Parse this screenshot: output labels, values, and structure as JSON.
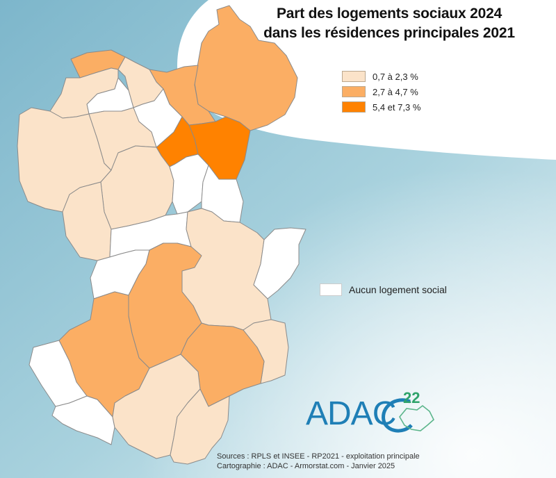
{
  "title": {
    "line1": "Part des logements sociaux 2024",
    "line2": "dans les résidences principales 2021"
  },
  "legend": {
    "classes": [
      {
        "label": "0,7 à 2,3 %",
        "color": "#fbe3c9"
      },
      {
        "label": "2,7 à 4,7 %",
        "color": "#fbae64"
      },
      {
        "label": "5,4 et 7,3 %",
        "color": "#ff8200"
      }
    ],
    "no_data": {
      "label": "Aucun logement social",
      "color": "#ffffff"
    }
  },
  "logo": {
    "text": "ADAC",
    "superscript": "22"
  },
  "sources": {
    "line1": "Sources : RPLS et INSEE - RP2021 - exploitation principale",
    "line2": "Cartographie : ADAC - Armorstat.com - Janvier 2025"
  },
  "colors": {
    "background_blue": "#7fb9cc",
    "border": "#8a8a8a"
  }
}
